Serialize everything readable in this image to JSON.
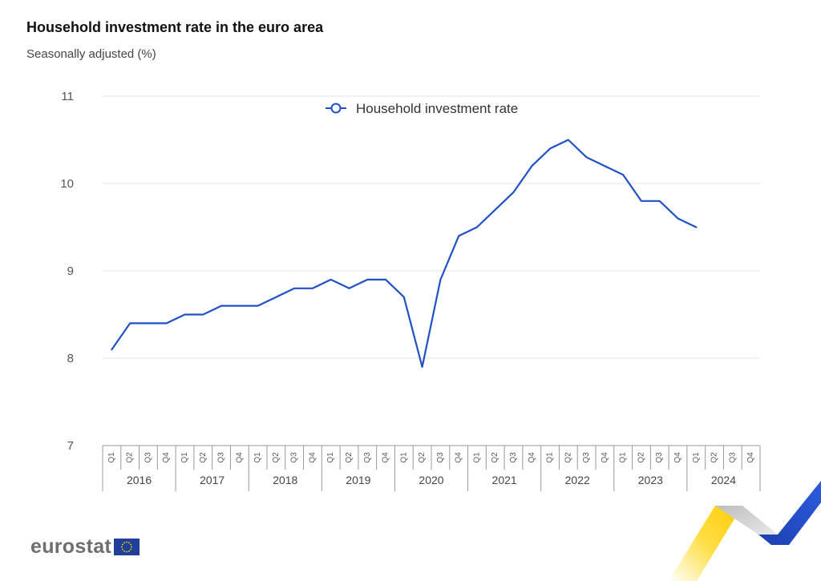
{
  "header": {
    "title": "Household investment rate in the euro area",
    "subtitle": "Seasonally adjusted (%)"
  },
  "logo": {
    "text": "eurostat"
  },
  "colors": {
    "line": "#2151c6",
    "grid": "#e4e4e4",
    "axis": "#999999"
  },
  "chart_data": {
    "type": "line",
    "title": "Household investment rate in the euro area",
    "subtitle": "Seasonally adjusted (%)",
    "xlabel": "",
    "ylabel": "",
    "ylim": [
      7,
      11
    ],
    "yticks": [
      7,
      8,
      9,
      10,
      11
    ],
    "grid": true,
    "legend_position": "top-center",
    "years": [
      "2016",
      "2017",
      "2018",
      "2019",
      "2020",
      "2021",
      "2022",
      "2023",
      "2024"
    ],
    "quarters": [
      "Q1",
      "Q2",
      "Q3",
      "Q4"
    ],
    "series": [
      {
        "name": "Household investment rate",
        "color": "#2151c6",
        "values": [
          8.1,
          8.4,
          8.4,
          8.4,
          8.5,
          8.5,
          8.6,
          8.6,
          8.6,
          8.7,
          8.8,
          8.8,
          8.9,
          8.8,
          8.9,
          8.9,
          8.7,
          7.9,
          8.9,
          9.4,
          9.5,
          9.7,
          9.9,
          10.2,
          10.4,
          10.5,
          10.3,
          10.2,
          10.1,
          9.8,
          9.8,
          9.6,
          9.5
        ]
      }
    ]
  }
}
